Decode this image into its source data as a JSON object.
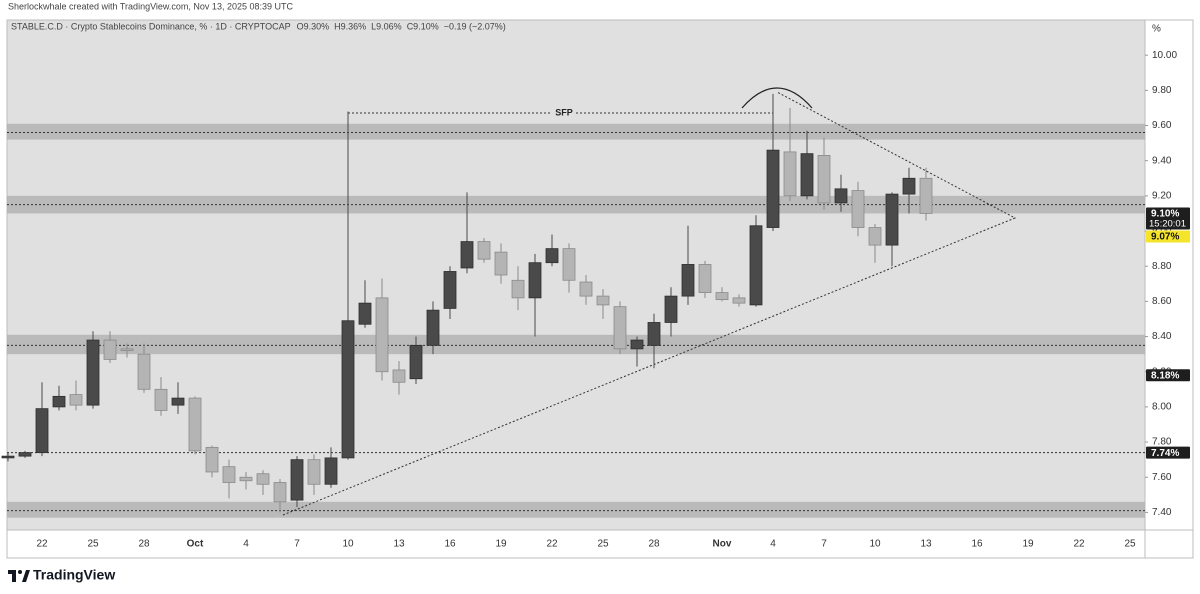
{
  "header": "Sherlockwhale created with TradingView.com, Nov 13, 2025 08:39 UTC",
  "footer": {
    "logo_text": "TradingView"
  },
  "chart_data": {
    "type": "candlestick",
    "title": "STABLE.C.D · Crypto Stablecoins Dominance, % · 1D · CRYPTOCAP",
    "legend_text": [
      "O9.30%",
      "H9.36%",
      "L9.06%",
      "C9.10%",
      "−0.19 (−2.07%)"
    ],
    "y_axis_label": "%",
    "annotation": "SFP",
    "categories": [
      null,
      null,
      "22",
      null,
      null,
      "25",
      null,
      null,
      "28",
      null,
      null,
      "Oct",
      null,
      null,
      "4",
      null,
      null,
      "7",
      null,
      null,
      "10",
      null,
      null,
      "13",
      null,
      null,
      "16",
      null,
      null,
      "19",
      null,
      null,
      "22",
      null,
      null,
      "25",
      null,
      null,
      "28",
      null,
      null,
      null,
      "Nov",
      null,
      null,
      "4",
      null,
      null,
      "7",
      null,
      null,
      "10",
      null,
      null,
      "13",
      null,
      null,
      "16",
      null,
      null,
      "19",
      null,
      null,
      "22",
      null,
      null,
      "25"
    ],
    "open": [
      7.71,
      7.72,
      7.74,
      8.0,
      8.07,
      8.01,
      8.38,
      8.33,
      8.3,
      8.1,
      8.01,
      8.05,
      7.77,
      7.66,
      7.6,
      7.62,
      7.57,
      7.47,
      7.7,
      7.56,
      7.71,
      8.47,
      8.62,
      8.21,
      8.16,
      8.35,
      8.56,
      8.79,
      8.94,
      8.88,
      8.72,
      8.62,
      8.82,
      8.9,
      8.71,
      8.63,
      8.57,
      8.33,
      8.35,
      8.48,
      8.63,
      8.81,
      8.65,
      8.62,
      8.58,
      9.02,
      9.45,
      9.2,
      9.43,
      9.16,
      9.23,
      9.02,
      8.92,
      9.21,
      9.3,
      null,
      null,
      null,
      null,
      null,
      null,
      null,
      null,
      null,
      null,
      null,
      null
    ],
    "high": [
      7.74,
      7.75,
      8.14,
      8.12,
      8.15,
      8.43,
      8.43,
      8.36,
      8.36,
      8.17,
      8.14,
      8.06,
      7.78,
      7.7,
      7.63,
      7.64,
      7.59,
      7.72,
      7.73,
      7.77,
      9.68,
      8.72,
      8.73,
      8.26,
      8.4,
      8.6,
      8.8,
      9.22,
      8.96,
      8.93,
      8.8,
      8.87,
      8.98,
      8.93,
      8.75,
      8.67,
      8.6,
      8.4,
      8.53,
      8.68,
      9.03,
      8.83,
      8.68,
      8.64,
      9.09,
      9.78,
      9.7,
      9.57,
      9.53,
      9.32,
      9.28,
      9.04,
      9.22,
      9.36,
      9.36,
      null,
      null,
      null,
      null,
      null,
      null,
      null,
      null,
      null,
      null,
      null,
      null
    ],
    "low": [
      7.69,
      7.71,
      7.72,
      7.98,
      7.98,
      7.99,
      8.25,
      8.28,
      8.08,
      7.95,
      7.96,
      7.73,
      7.6,
      7.48,
      7.53,
      7.5,
      7.4,
      7.43,
      7.5,
      7.54,
      7.7,
      8.45,
      8.15,
      8.07,
      8.13,
      8.3,
      8.5,
      8.76,
      8.82,
      8.7,
      8.55,
      8.4,
      8.8,
      8.65,
      8.58,
      8.5,
      8.3,
      8.23,
      8.22,
      8.4,
      8.58,
      8.62,
      8.6,
      8.57,
      8.57,
      9.0,
      9.17,
      9.18,
      9.12,
      9.11,
      8.97,
      8.82,
      8.8,
      9.1,
      9.06,
      null,
      null,
      null,
      null,
      null,
      null,
      null,
      null,
      null,
      null,
      null,
      null
    ],
    "close": [
      7.72,
      7.74,
      7.99,
      8.06,
      8.01,
      8.38,
      8.27,
      8.32,
      8.1,
      7.98,
      8.05,
      7.75,
      7.63,
      7.57,
      7.58,
      7.56,
      7.46,
      7.7,
      7.56,
      7.71,
      8.49,
      8.59,
      8.2,
      8.14,
      8.35,
      8.55,
      8.77,
      8.94,
      8.84,
      8.75,
      8.62,
      8.82,
      8.9,
      8.72,
      8.63,
      8.58,
      8.33,
      8.38,
      8.48,
      8.63,
      8.81,
      8.65,
      8.61,
      8.59,
      9.03,
      9.46,
      9.2,
      9.44,
      9.16,
      9.24,
      9.02,
      8.92,
      9.21,
      9.3,
      9.1,
      null,
      null,
      null,
      null,
      null,
      null,
      null,
      null,
      null,
      null,
      null,
      null
    ],
    "up_color": "#4a4a4a",
    "down_color": "#b4b4b4",
    "ylim": [
      7.3,
      10.2
    ],
    "yticks": [
      {
        "value": 7.4,
        "label": "7.40"
      },
      {
        "value": 7.6,
        "label": "7.60"
      },
      {
        "value": 7.8,
        "label": "7.80"
      },
      {
        "value": 8.0,
        "label": "8.00"
      },
      {
        "value": 8.2,
        "label": "8.20"
      },
      {
        "value": 8.4,
        "label": "8.40"
      },
      {
        "value": 8.6,
        "label": "8.60"
      },
      {
        "value": 8.8,
        "label": "8.80"
      },
      {
        "value": 9.0,
        "label": "9.00"
      },
      {
        "value": 9.2,
        "label": "9.20"
      },
      {
        "value": 9.4,
        "label": "9.40"
      },
      {
        "value": 9.6,
        "label": "9.60"
      },
      {
        "value": 9.8,
        "label": "9.80"
      },
      {
        "value": 10.0,
        "label": "10.00"
      }
    ],
    "grid": false,
    "zones": [
      [
        9.52,
        9.61
      ],
      [
        9.1,
        9.2
      ],
      [
        8.3,
        8.41
      ],
      [
        7.37,
        7.46
      ]
    ],
    "zone_color": "#b3b3b3",
    "levels": [
      9.56,
      9.15,
      8.35,
      7.41,
      7.74
    ],
    "price_labels": [
      {
        "value": 9.1,
        "label": "9.10%",
        "countdown": "15:20:01",
        "color": "#1e1e1e"
      },
      {
        "value": 9.07,
        "label": "9.07%",
        "color": "#f5e52a"
      },
      {
        "value": 8.18,
        "label": "8.18%",
        "color": "#1e1e1e"
      },
      {
        "value": 7.74,
        "label": "7.74%",
        "color": "#1e1e1e"
      }
    ]
  }
}
